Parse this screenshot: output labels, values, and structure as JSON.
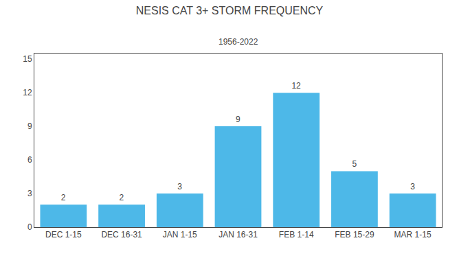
{
  "chart_data": {
    "type": "bar",
    "title": "NESIS CAT 3+ STORM FREQUENCY",
    "subtitle": "1956-2022",
    "categories": [
      "DEC 1-15",
      "DEC 16-31",
      "JAN 1-15",
      "JAN 16-31",
      "FEB 1-14",
      "FEB 15-29",
      "MAR 1-15"
    ],
    "values": [
      2,
      2,
      3,
      9,
      12,
      5,
      3
    ],
    "color": "#4db8e8",
    "ylim": [
      0,
      15.5
    ],
    "yticks": [
      0,
      3,
      6,
      9,
      12,
      15
    ],
    "grid": false,
    "data_labels": true
  }
}
